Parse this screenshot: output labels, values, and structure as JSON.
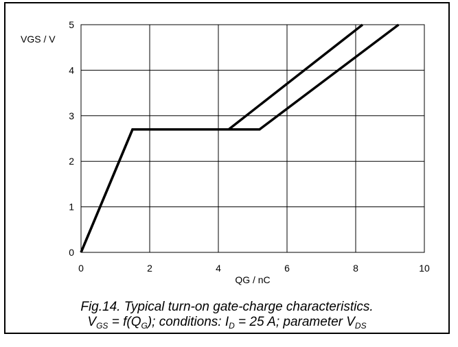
{
  "chart_data": {
    "type": "line",
    "xlabel": "QG / nC",
    "ylabel": "VGS / V",
    "xlim": [
      0,
      10
    ],
    "ylim": [
      0,
      5
    ],
    "xticks": [
      0,
      2,
      4,
      6,
      8,
      10
    ],
    "yticks": [
      0,
      1,
      2,
      3,
      4,
      5
    ],
    "grid": true,
    "series": [
      {
        "x": [
          0,
          1.5,
          4.3,
          8.2
        ],
        "y": [
          0,
          2.7,
          2.7,
          5
        ]
      },
      {
        "x": [
          0,
          1.5,
          5.2,
          9.25
        ],
        "y": [
          0,
          2.7,
          2.7,
          5
        ]
      }
    ]
  },
  "caption": {
    "line1": "Fig.14.  Typical turn-on gate-charge characteristics.",
    "line2_parts": [
      {
        "t": "V",
        "sub": false
      },
      {
        "t": "GS",
        "sub": true
      },
      {
        "t": " = f(Q",
        "sub": false
      },
      {
        "t": "G",
        "sub": true
      },
      {
        "t": "); conditions: I",
        "sub": false
      },
      {
        "t": "D",
        "sub": true
      },
      {
        "t": " = 25 A; parameter V",
        "sub": false
      },
      {
        "t": "DS",
        "sub": true
      }
    ]
  }
}
